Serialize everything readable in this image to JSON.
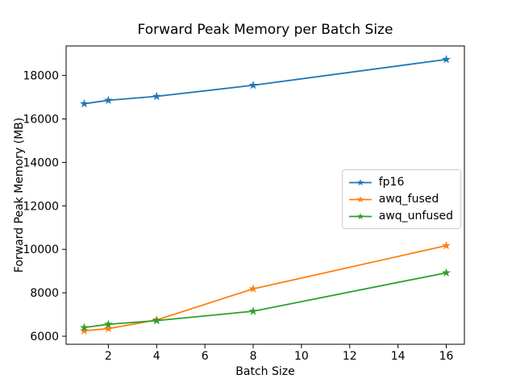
{
  "chart_data": {
    "type": "line",
    "title": "Forward Peak Memory per Batch Size",
    "xlabel": "Batch Size",
    "ylabel": "Forward Peak Memory (MB)",
    "x": [
      1,
      2,
      4,
      8,
      16
    ],
    "series": [
      {
        "name": "fp16",
        "color": "#1f77b4",
        "values": [
          16700,
          16860,
          17040,
          17550,
          18740
        ]
      },
      {
        "name": "awq_fused",
        "color": "#ff7f0e",
        "values": [
          6250,
          6350,
          6750,
          8180,
          10170
        ]
      },
      {
        "name": "awq_unfused",
        "color": "#2ca02c",
        "values": [
          6400,
          6550,
          6720,
          7150,
          8920
        ]
      }
    ],
    "x_ticks": [
      2,
      4,
      6,
      8,
      10,
      12,
      14,
      16
    ],
    "y_ticks": [
      6000,
      8000,
      10000,
      12000,
      14000,
      16000,
      18000
    ],
    "xlim": [
      0.25,
      16.75
    ],
    "ylim": [
      5630,
      19360
    ],
    "marker": "star",
    "grid": false,
    "legend": {
      "position": "center-right",
      "entries": [
        "fp16",
        "awq_fused",
        "awq_unfused"
      ]
    }
  }
}
